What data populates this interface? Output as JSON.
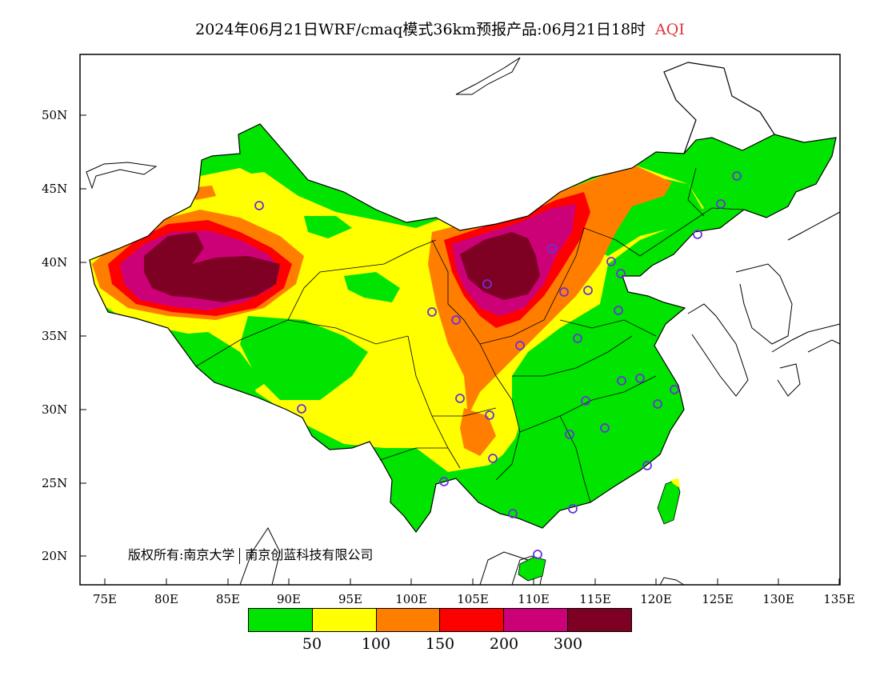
{
  "title": {
    "main": "2024年06月21日WRF/cmaq模式36km预报产品:06月21日18时",
    "variable": "AQI"
  },
  "axes": {
    "latitudes": [
      "50N",
      "45N",
      "40N",
      "35N",
      "30N",
      "25N",
      "20N"
    ],
    "longitudes": [
      "75E",
      "80E",
      "85E",
      "90E",
      "95E",
      "100E",
      "105E",
      "110E",
      "115E",
      "120E",
      "125E",
      "130E",
      "135E"
    ]
  },
  "copyright": {
    "left": "版权所有:南京大学",
    "right": "南京创蓝科技有限公司"
  },
  "legend": {
    "colors": [
      "#00e400",
      "#ffff00",
      "#ff7e00",
      "#ff0000",
      "#cc0077",
      "#7e0023"
    ],
    "labels": [
      "50",
      "100",
      "150",
      "200",
      "300"
    ]
  },
  "colors": {
    "ocean": "#ffffff",
    "border": "#000000",
    "station_marker": "#6a32d8"
  }
}
